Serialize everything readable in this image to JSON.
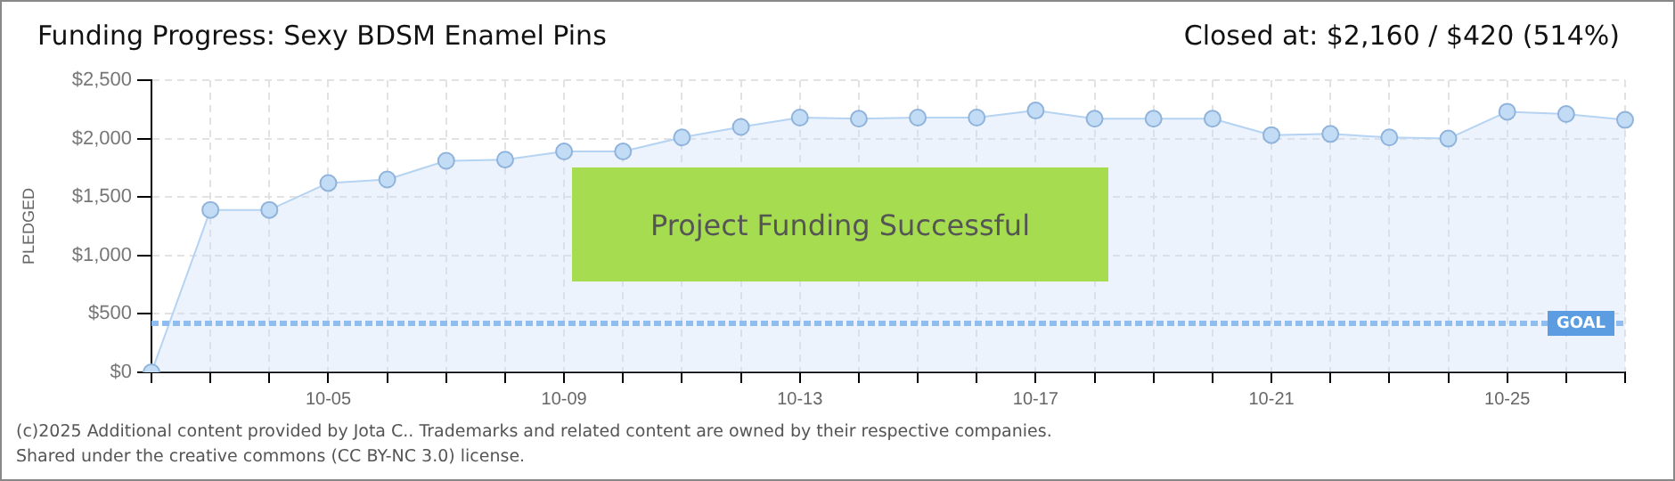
{
  "chart_data": {
    "type": "area",
    "title": "Funding Progress: Sexy BDSM Enamel Pins",
    "ylabel": "PLEDGED",
    "categories": [
      null,
      null,
      null,
      "10-05",
      null,
      null,
      null,
      "10-09",
      null,
      null,
      null,
      "10-13",
      null,
      null,
      null,
      "10-17",
      null,
      null,
      null,
      "10-21",
      null,
      null,
      null,
      "10-25",
      null,
      null
    ],
    "series": [
      {
        "color": "#b5d3f2",
        "values": [
          0,
          1390,
          1390,
          1620,
          1650,
          1810,
          1820,
          1890,
          1890,
          2010,
          2100,
          2180,
          2170,
          2180,
          2180,
          2240,
          2170,
          2170,
          2170,
          2030,
          2040,
          2010,
          2000,
          2230,
          2210,
          2160
        ]
      }
    ],
    "ylim": [
      0,
      2500
    ],
    "yticks": [
      {
        "value": 0,
        "label": "$0"
      },
      {
        "value": 500,
        "label": "$500"
      },
      {
        "value": 1000,
        "label": "$1,000"
      },
      {
        "value": 1500,
        "label": "$1,500"
      },
      {
        "value": 2000,
        "label": "$2,000"
      },
      {
        "value": 2500,
        "label": "$2,500"
      }
    ],
    "ref_lines": [
      {
        "axis": "y",
        "value": 420,
        "label": "GOAL",
        "color": "#8fbdf0",
        "line_style": "dashed"
      }
    ],
    "grid": true,
    "legend": false,
    "marker": "circle",
    "annotations": [
      "Closed at: $2,160 / $420 (514%)",
      "Project Funding Successful",
      "(c)2025 Additional content provided by Jota C.. Trademarks and related content are owned by their respective companies.",
      "Shared under the creative commons (CC BY-NC 3.0) license."
    ]
  }
}
